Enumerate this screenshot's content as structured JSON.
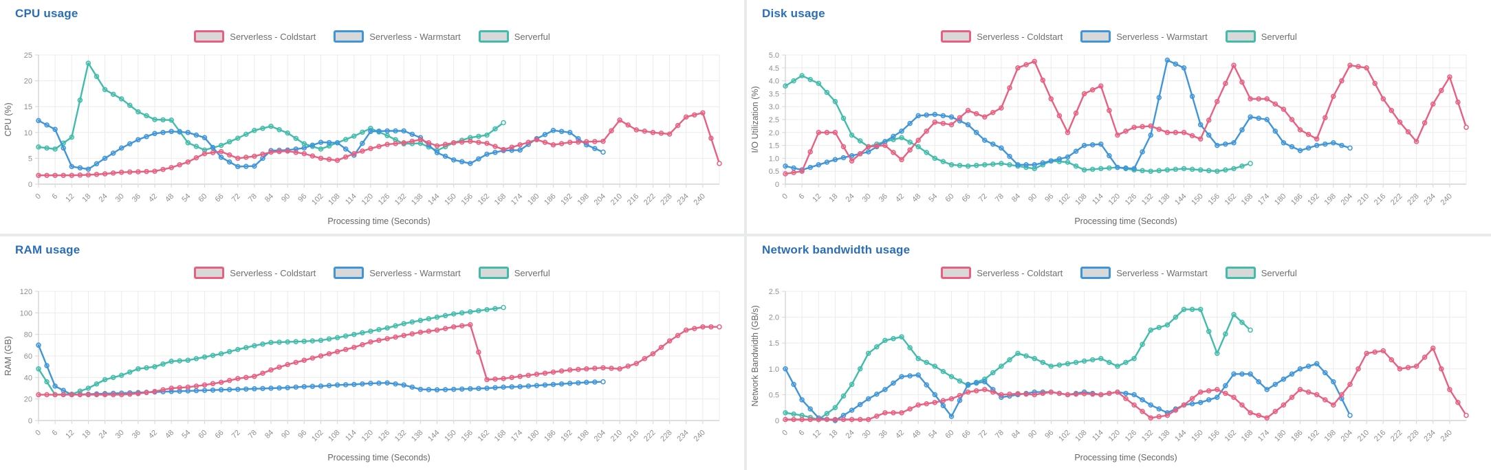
{
  "style": {
    "title_color": "#2a6db8",
    "grid_color": "#ebebeb",
    "axis_line_color": "#d4d4d4",
    "tick_text_color": "#8f8f8f",
    "axis_title_color": "#666666",
    "legend_swatch_fill": "#d8d8d8",
    "series_colors": {
      "coldstart": "#e85f80",
      "warmstart": "#3e95d9",
      "serverful": "#41bcab"
    }
  },
  "x_axis": {
    "label": "Processing time (Seconds)",
    "tick_labels": [
      0,
      6,
      12,
      18,
      24,
      30,
      36,
      42,
      48,
      54,
      60,
      66,
      72,
      78,
      84,
      90,
      96,
      102,
      108,
      114,
      120,
      126,
      132,
      138,
      144,
      150,
      156,
      162,
      168,
      174,
      180,
      186,
      192,
      198,
      204,
      210,
      216,
      222,
      228,
      234,
      240
    ],
    "max": 246,
    "step": 6
  },
  "chart_data": [
    {
      "type": "line",
      "title": "CPU usage",
      "xlabel": "Processing time (Seconds)",
      "ylabel": "CPU (%)",
      "ylim": [
        0,
        25
      ],
      "y_ticks": [
        "0",
        "5",
        "10",
        "15",
        "20",
        "25"
      ],
      "legend_position": "top",
      "grid": true,
      "x_step": 6,
      "series": [
        {
          "name": "Serverless - Coldstart",
          "color": "#e85f80",
          "values": [
            1.7,
            1.7,
            1.7,
            1.8,
            2.0,
            2.3,
            2.4,
            2.5,
            3.2,
            4.3,
            5.9,
            6.3,
            5.0,
            5.4,
            6.2,
            6.4,
            5.9,
            5.0,
            4.6,
            5.9,
            6.9,
            7.7,
            8.0,
            8.6,
            7.4,
            8.0,
            8.3,
            7.9,
            6.7,
            7.6,
            8.6,
            7.6,
            8.1,
            8.2,
            8.3,
            12.4,
            10.5,
            10.0,
            9.7,
            13.0,
            13.8,
            4.0
          ]
        },
        {
          "name": "Serverless - Warmstart",
          "color": "#3e95d9",
          "values": [
            12.3,
            10.6,
            3.4,
            2.9,
            5.0,
            7.0,
            8.6,
            9.8,
            10.2,
            10.0,
            9.0,
            5.2,
            3.4,
            3.5,
            6.5,
            6.6,
            7.0,
            8.1,
            8.0,
            5.6,
            10.2,
            10.3,
            10.3,
            9.0,
            6.1,
            4.7,
            4.0,
            5.8,
            6.5,
            6.6,
            8.8,
            10.4,
            10.0,
            7.6,
            6.2
          ]
        },
        {
          "name": "Serverful",
          "color": "#41bcab",
          "values": [
            7.2,
            6.8,
            9.1,
            23.4,
            18.3,
            16.5,
            14.0,
            12.5,
            12.4,
            8.0,
            6.6,
            7.5,
            8.9,
            10.4,
            11.2,
            9.9,
            7.8,
            6.8,
            8.0,
            9.3,
            10.8,
            9.4,
            7.8,
            7.9,
            6.5,
            8.0,
            9.0,
            9.5,
            11.9
          ]
        }
      ]
    },
    {
      "type": "line",
      "title": "Disk usage",
      "xlabel": "Processing time (Seconds)",
      "ylabel": "I/O Utilization (%)",
      "ylim": [
        0,
        5
      ],
      "y_ticks": [
        "0",
        "0.5",
        "1.0",
        "1.5",
        "2.0",
        "2.5",
        "3.0",
        "3.5",
        "4.0",
        "4.5",
        "5.0"
      ],
      "legend_position": "top",
      "grid": true,
      "x_step": 6,
      "series": [
        {
          "name": "Serverless - Coldstart",
          "color": "#e85f80",
          "values": [
            0.4,
            0.5,
            2.0,
            2.0,
            0.9,
            1.45,
            1.5,
            0.95,
            1.7,
            2.4,
            2.3,
            2.85,
            2.6,
            2.95,
            4.5,
            4.75,
            3.3,
            2.0,
            3.5,
            3.8,
            1.9,
            2.2,
            2.25,
            2.0,
            2.0,
            1.75,
            3.2,
            4.6,
            3.3,
            3.3,
            2.9,
            2.1,
            1.75,
            3.4,
            4.6,
            4.5,
            3.3,
            2.4,
            1.65,
            3.1,
            4.15,
            2.2
          ]
        },
        {
          "name": "Serverless - Warmstart",
          "color": "#3e95d9",
          "values": [
            0.7,
            0.55,
            0.75,
            0.95,
            1.1,
            1.25,
            1.65,
            2.05,
            2.65,
            2.7,
            2.6,
            2.3,
            1.7,
            1.4,
            0.75,
            0.75,
            0.9,
            1.05,
            1.5,
            1.55,
            0.65,
            0.6,
            1.9,
            4.8,
            4.5,
            2.3,
            1.5,
            1.6,
            2.6,
            2.5,
            1.6,
            1.3,
            1.5,
            1.6,
            1.4
          ]
        },
        {
          "name": "Serverful",
          "color": "#41bcab",
          "values": [
            3.8,
            4.2,
            3.9,
            3.2,
            1.9,
            1.45,
            1.65,
            1.8,
            1.45,
            1.0,
            0.75,
            0.7,
            0.75,
            0.8,
            0.7,
            0.6,
            0.9,
            0.85,
            0.55,
            0.6,
            0.65,
            0.55,
            0.5,
            0.55,
            0.6,
            0.55,
            0.5,
            0.6,
            0.8
          ]
        }
      ]
    },
    {
      "type": "line",
      "title": "RAM usage",
      "xlabel": "Processing time (Seconds)",
      "ylabel": "RAM (GB)",
      "ylim": [
        0,
        120
      ],
      "y_ticks": [
        "0",
        "20",
        "40",
        "60",
        "80",
        "100",
        "120"
      ],
      "legend_position": "top",
      "grid": true,
      "x_step": 6,
      "series": [
        {
          "name": "Serverless - Coldstart",
          "color": "#e85f80",
          "values": [
            24,
            24,
            24,
            24,
            24,
            24,
            25,
            27,
            30,
            31,
            33,
            35.5,
            39,
            41,
            47,
            52,
            56,
            60,
            64,
            68,
            73,
            76,
            79,
            82,
            84,
            87,
            89,
            38,
            39,
            41,
            43,
            45,
            47,
            48,
            49,
            48,
            53,
            62,
            74,
            84,
            87,
            87
          ]
        },
        {
          "name": "Serverless - Warmstart",
          "color": "#3e95d9",
          "values": [
            70,
            32,
            24,
            24.5,
            25,
            25.5,
            26,
            26.5,
            27,
            27.5,
            28,
            28.5,
            29,
            29.5,
            30,
            30.5,
            31.5,
            32,
            33,
            33.5,
            34.5,
            35,
            33,
            29,
            28.5,
            29,
            29.5,
            30,
            31,
            31.5,
            32.5,
            33.5,
            34.5,
            35.5,
            36
          ]
        },
        {
          "name": "Serverful",
          "color": "#41bcab",
          "values": [
            48,
            24,
            24.5,
            30,
            38,
            42,
            48,
            50,
            55,
            56,
            59,
            62,
            66,
            69.5,
            72.5,
            73,
            73.5,
            74.5,
            77,
            80,
            83,
            86,
            90,
            93,
            96,
            99,
            101,
            103,
            105
          ]
        }
      ]
    },
    {
      "type": "line",
      "title": "Network bandwidth usage",
      "xlabel": "Processing time (Seconds)",
      "ylabel": "Network Bandwidth (GB/s)",
      "ylim": [
        0,
        2.5
      ],
      "y_ticks": [
        "0",
        "0.5",
        "1.0",
        "1.5",
        "2.0",
        "2.5"
      ],
      "legend_position": "top",
      "grid": true,
      "x_step": 6,
      "series": [
        {
          "name": "Serverless - Coldstart",
          "color": "#e85f80",
          "values": [
            0.02,
            0.02,
            0.02,
            0.02,
            0.02,
            0.02,
            0.15,
            0.15,
            0.3,
            0.35,
            0.42,
            0.55,
            0.6,
            0.5,
            0.52,
            0.5,
            0.55,
            0.5,
            0.52,
            0.5,
            0.55,
            0.3,
            0.05,
            0.1,
            0.3,
            0.55,
            0.6,
            0.45,
            0.15,
            0.05,
            0.3,
            0.6,
            0.5,
            0.3,
            0.7,
            1.3,
            1.35,
            1.0,
            1.05,
            1.4,
            0.6,
            0.1
          ]
        },
        {
          "name": "Serverless - Warmstart",
          "color": "#3e95d9",
          "values": [
            1.0,
            0.4,
            0.05,
            0.0,
            0.2,
            0.42,
            0.6,
            0.85,
            0.88,
            0.5,
            0.08,
            0.7,
            0.75,
            0.45,
            0.5,
            0.55,
            0.55,
            0.5,
            0.55,
            0.5,
            0.55,
            0.5,
            0.3,
            0.15,
            0.3,
            0.35,
            0.45,
            0.9,
            0.9,
            0.6,
            0.8,
            1.0,
            1.1,
            0.75,
            0.1
          ]
        },
        {
          "name": "Serverful",
          "color": "#41bcab",
          "values": [
            0.15,
            0.1,
            0.02,
            0.25,
            0.7,
            1.3,
            1.55,
            1.62,
            1.2,
            1.05,
            0.85,
            0.68,
            0.8,
            1.05,
            1.3,
            1.2,
            1.05,
            1.1,
            1.15,
            1.2,
            1.05,
            1.2,
            1.75,
            1.85,
            2.15,
            2.15,
            1.3,
            2.05,
            1.75
          ]
        }
      ]
    }
  ]
}
